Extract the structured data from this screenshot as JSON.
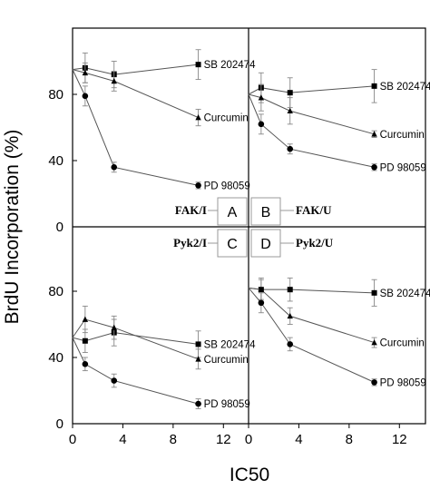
{
  "chart_data": {
    "type": "line",
    "ylabel": "BrdU Incorporation (%)",
    "xlabel": "IC50",
    "xlim": [
      0,
      14
    ],
    "ylim": [
      0,
      120
    ],
    "x_ticks": [
      "0",
      "4",
      "8",
      "12"
    ],
    "y_ticks_top": [
      "0",
      "40",
      "80"
    ],
    "y_ticks_bottom": [
      "0",
      "40",
      "80"
    ],
    "panels": [
      {
        "letter": "A",
        "tag": "FAK/I",
        "series": [
          {
            "name": "SB 202474",
            "marker": "square",
            "x": [
              0,
              1,
              3.3,
              10
            ],
            "y": [
              95,
              96,
              92,
              98
            ],
            "err": [
              0,
              9,
              8,
              9
            ]
          },
          {
            "name": "Curcumin",
            "marker": "triangle",
            "x": [
              0,
              1,
              3.3,
              10
            ],
            "y": [
              95,
              93,
              88,
              66
            ],
            "err": [
              0,
              6,
              6,
              5
            ]
          },
          {
            "name": "PD 98059",
            "marker": "circle",
            "x": [
              0,
              1,
              3.3,
              10
            ],
            "y": [
              95,
              79,
              36,
              25
            ],
            "err": [
              0,
              6,
              3,
              2
            ]
          }
        ]
      },
      {
        "letter": "B",
        "tag": "FAK/U",
        "series": [
          {
            "name": "SB 202474",
            "marker": "square",
            "x": [
              0,
              1,
              3.3,
              10
            ],
            "y": [
              80,
              84,
              81,
              85
            ],
            "err": [
              0,
              9,
              9,
              10
            ]
          },
          {
            "name": "Curcumin",
            "marker": "triangle",
            "x": [
              0,
              1,
              3.3,
              10
            ],
            "y": [
              80,
              78,
              70,
              56
            ],
            "err": [
              0,
              8,
              8,
              2
            ]
          },
          {
            "name": "PD 98059",
            "marker": "circle",
            "x": [
              0,
              1,
              3.3,
              10
            ],
            "y": [
              80,
              62,
              47,
              36
            ],
            "err": [
              0,
              6,
              3,
              2
            ]
          }
        ]
      },
      {
        "letter": "C",
        "tag": "Pyk2/I",
        "series": [
          {
            "name": "SB 202474",
            "marker": "square",
            "x": [
              0,
              1,
              3.3,
              10
            ],
            "y": [
              52,
              50,
              55,
              48
            ],
            "err": [
              0,
              7,
              8,
              8
            ]
          },
          {
            "name": "Curcumin",
            "marker": "triangle",
            "x": [
              0,
              1,
              3.3,
              10
            ],
            "y": [
              52,
              63,
              58,
              39
            ],
            "err": [
              0,
              8,
              7,
              6
            ]
          },
          {
            "name": "PD 98059",
            "marker": "circle",
            "x": [
              0,
              1,
              3.3,
              10
            ],
            "y": [
              52,
              36,
              26,
              12
            ],
            "err": [
              0,
              4,
              4,
              3
            ]
          }
        ]
      },
      {
        "letter": "D",
        "tag": "Pyk2/U",
        "series": [
          {
            "name": "SB 202474",
            "marker": "square",
            "x": [
              0,
              1,
              3.3,
              10
            ],
            "y": [
              82,
              81,
              81,
              79
            ],
            "err": [
              0,
              7,
              7,
              8
            ]
          },
          {
            "name": "Curcumin",
            "marker": "triangle",
            "x": [
              0,
              1,
              3.3,
              10
            ],
            "y": [
              82,
              81,
              65,
              49
            ],
            "err": [
              0,
              6,
              5,
              3
            ]
          },
          {
            "name": "PD 98059",
            "marker": "circle",
            "x": [
              0,
              1,
              3.3,
              10
            ],
            "y": [
              82,
              73,
              48,
              25
            ],
            "err": [
              0,
              6,
              4,
              2
            ]
          }
        ]
      }
    ],
    "grid": false,
    "legend": "none"
  }
}
